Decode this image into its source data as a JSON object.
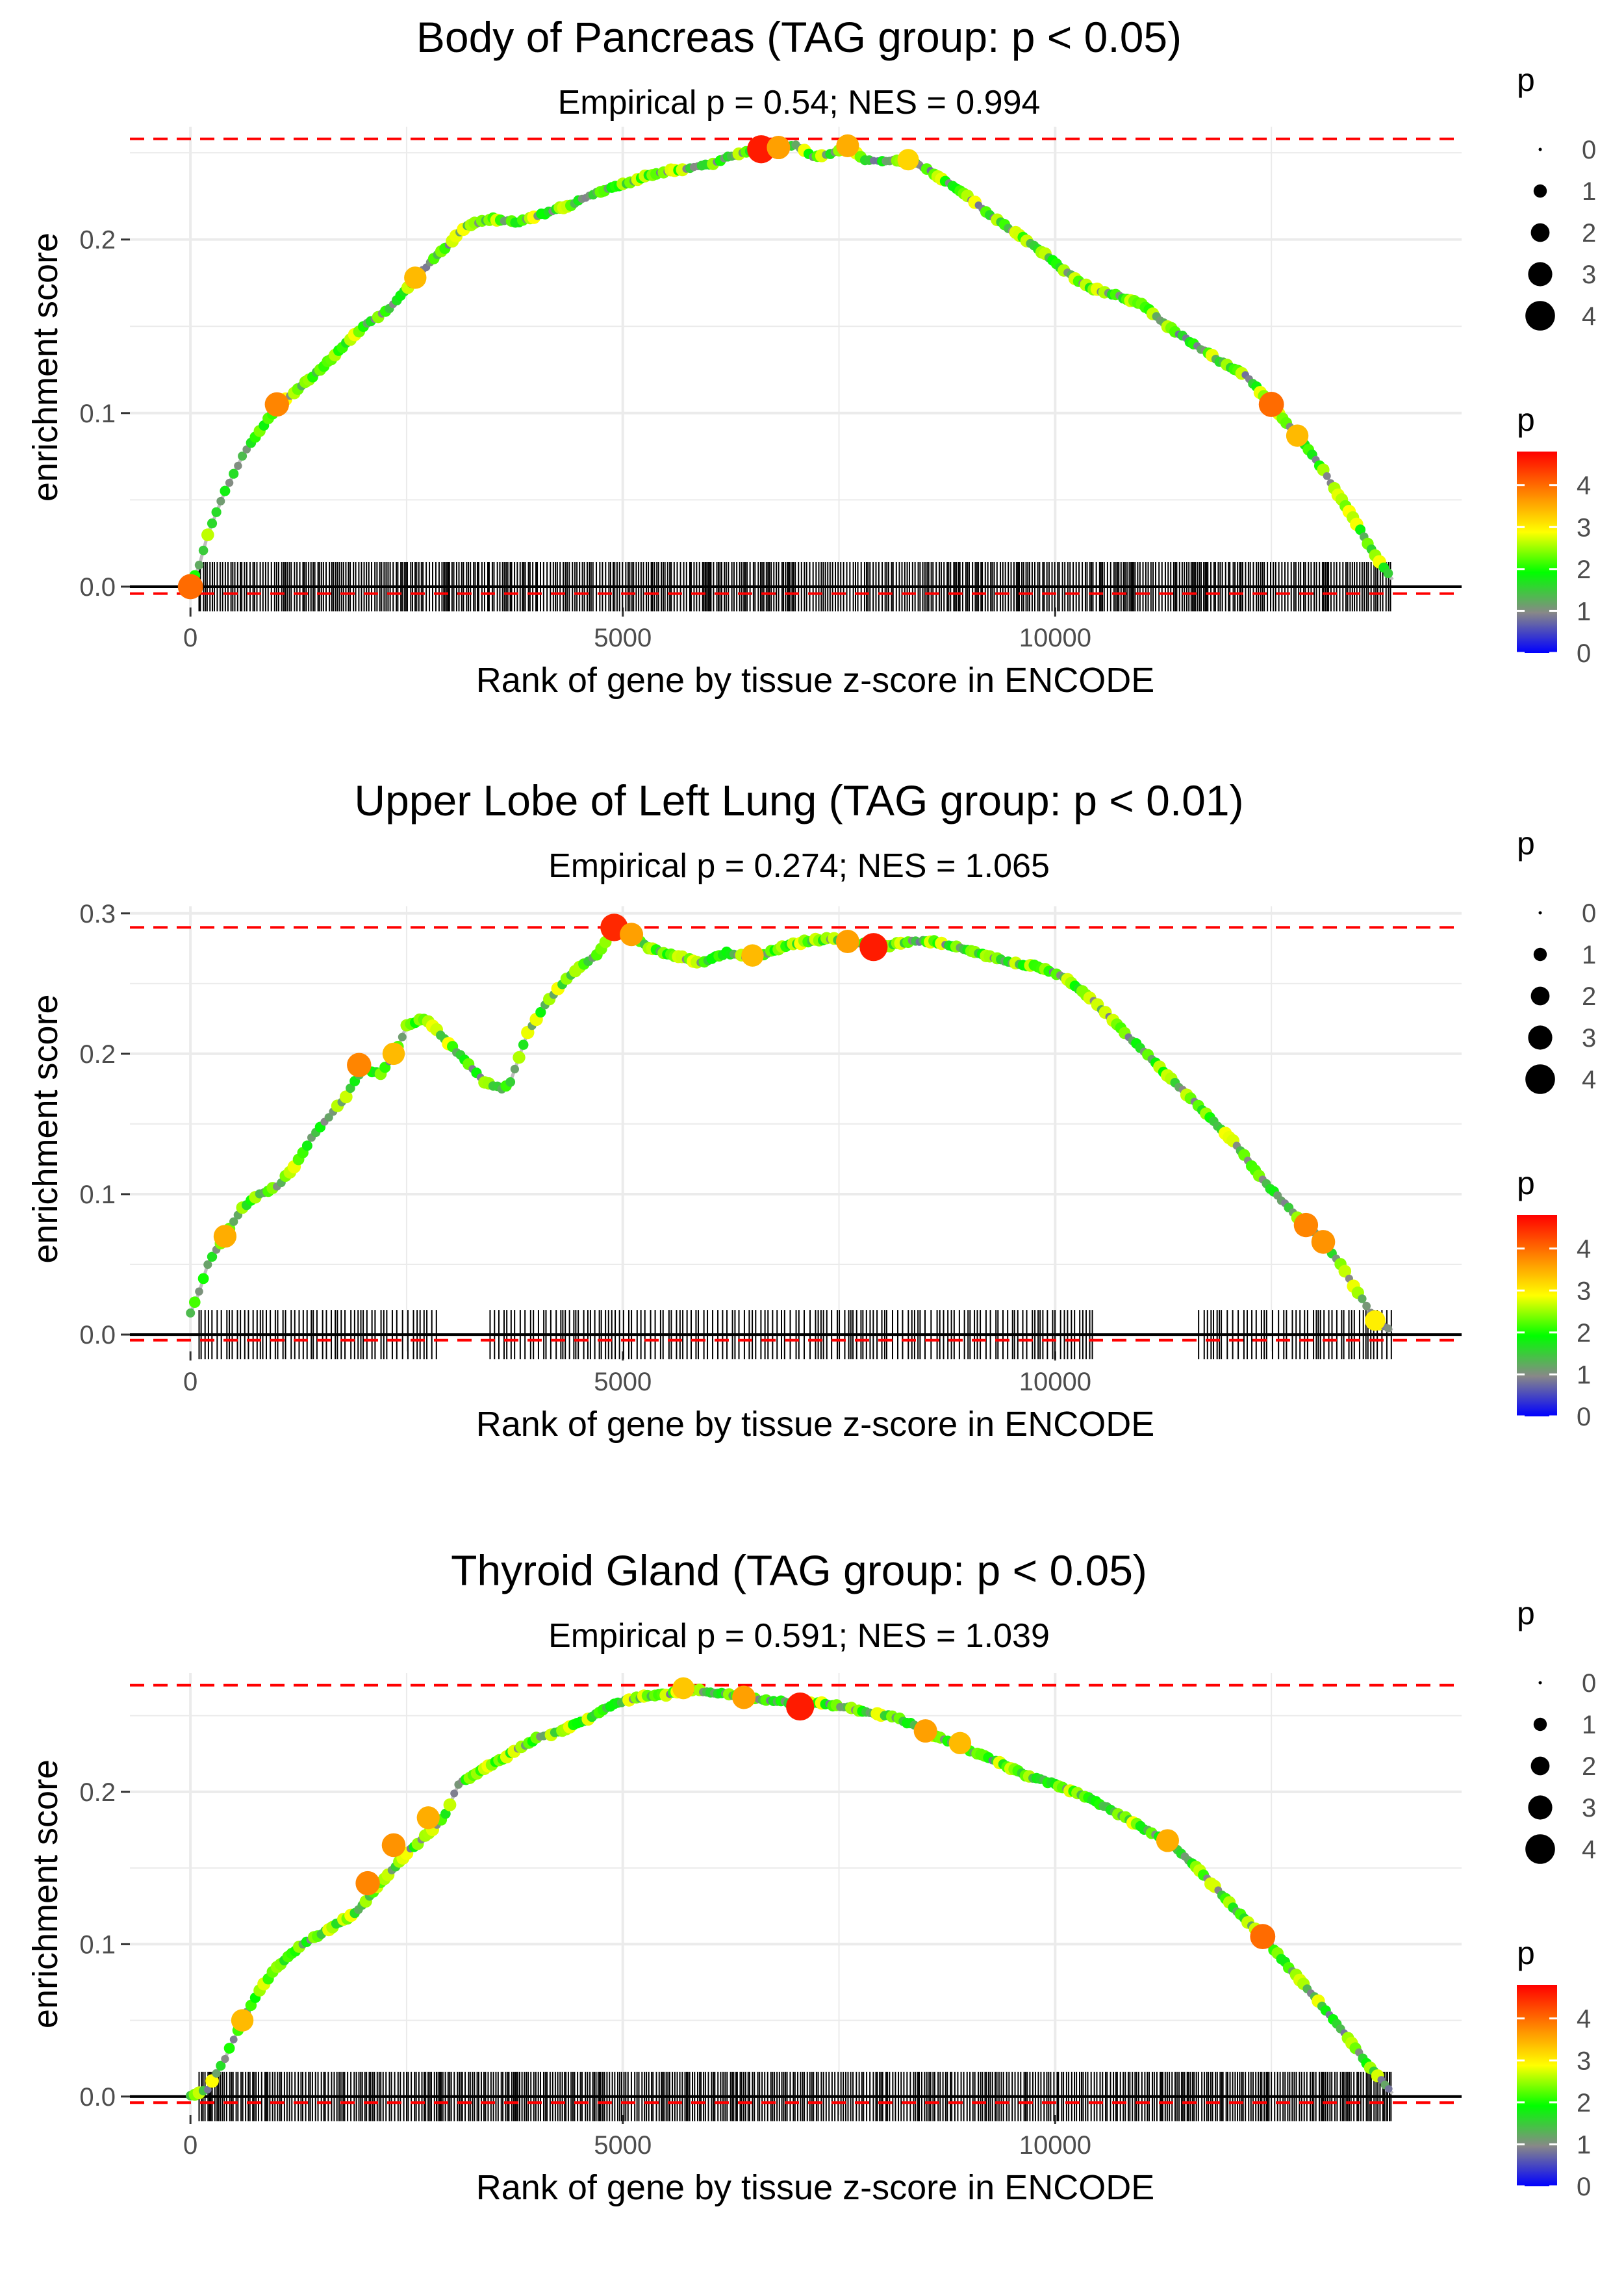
{
  "chart_data": [
    {
      "type": "line",
      "title": "Body of Pancreas (TAG group: p < 0.05)",
      "subtitle": "Empirical p = 0.54; NES = 0.994",
      "xlabel": "Rank of gene by tissue z-score in ENCODE",
      "ylabel": "enrichment score",
      "xlim": [
        -700,
        14700
      ],
      "ylim": [
        -0.012,
        0.265
      ],
      "x_ticks": [
        0,
        5000,
        10000
      ],
      "x_tick_labels": [
        "0",
        "5000",
        "10000"
      ],
      "y_ticks": [
        0.0,
        0.1,
        0.2
      ],
      "y_tick_labels": [
        "0.0",
        "0.1",
        "0.2"
      ],
      "max_es": 0.258,
      "min_es": -0.004,
      "series": [
        {
          "name": "running enrichment score",
          "x": [
            0,
            100,
            200,
            400,
            600,
            800,
            1000,
            1200,
            1500,
            1800,
            2000,
            2300,
            2600,
            2900,
            3200,
            3500,
            3800,
            4100,
            4400,
            4700,
            5000,
            5300,
            5600,
            6000,
            6300,
            6600,
            6800,
            7000,
            7200,
            7400,
            7600,
            7800,
            8000,
            8300,
            8600,
            8900,
            9200,
            9500,
            9800,
            10100,
            10400,
            10700,
            11000,
            11300,
            11600,
            11900,
            12200,
            12500,
            12800,
            13100,
            13400,
            13700,
            13900
          ],
          "y": [
            0.0,
            0.012,
            0.03,
            0.055,
            0.075,
            0.09,
            0.103,
            0.112,
            0.125,
            0.14,
            0.15,
            0.16,
            0.178,
            0.193,
            0.208,
            0.212,
            0.21,
            0.215,
            0.22,
            0.227,
            0.232,
            0.237,
            0.24,
            0.243,
            0.249,
            0.252,
            0.253,
            0.254,
            0.248,
            0.249,
            0.254,
            0.246,
            0.245,
            0.246,
            0.238,
            0.228,
            0.216,
            0.205,
            0.195,
            0.182,
            0.172,
            0.168,
            0.163,
            0.15,
            0.14,
            0.13,
            0.122,
            0.105,
            0.087,
            0.067,
            0.043,
            0.018,
            0.004
          ]
        }
      ],
      "gene_hits_x_range": [
        100,
        13900
      ],
      "gene_hit_gaps": [],
      "highlight_points": [
        {
          "x": 0,
          "y": 0.0,
          "p": 4.0
        },
        {
          "x": 1000,
          "y": 0.105,
          "p": 3.8
        },
        {
          "x": 2600,
          "y": 0.178,
          "p": 3.4
        },
        {
          "x": 6600,
          "y": 0.252,
          "p": 4.6
        },
        {
          "x": 6800,
          "y": 0.253,
          "p": 3.6
        },
        {
          "x": 7600,
          "y": 0.254,
          "p": 3.5
        },
        {
          "x": 8300,
          "y": 0.246,
          "p": 3.2
        },
        {
          "x": 12500,
          "y": 0.105,
          "p": 4.0
        },
        {
          "x": 12800,
          "y": 0.087,
          "p": 3.4
        }
      ],
      "size_legend": {
        "title": "p",
        "labels": [
          "0",
          "1",
          "2",
          "3",
          "4"
        ]
      },
      "color_legend": {
        "title": "p",
        "labels": [
          "4",
          "3",
          "2",
          "1",
          "0"
        ],
        "range": [
          0,
          4.8
        ]
      }
    },
    {
      "type": "line",
      "title": "Upper Lobe of Left Lung (TAG group: p < 0.01)",
      "subtitle": "Empirical p = 0.274; NES = 1.065",
      "xlabel": "Rank of gene by tissue z-score in ENCODE",
      "ylabel": "enrichment score",
      "xlim": [
        -700,
        14700
      ],
      "ylim": [
        -0.012,
        0.305
      ],
      "x_ticks": [
        0,
        5000,
        10000
      ],
      "x_tick_labels": [
        "0",
        "5000",
        "10000"
      ],
      "y_ticks": [
        0.0,
        0.1,
        0.2,
        0.3
      ],
      "y_tick_labels": [
        "0.0",
        "0.1",
        "0.2",
        "0.3"
      ],
      "max_es": 0.29,
      "min_es": -0.004,
      "series": [
        {
          "name": "running enrichment score",
          "x": [
            0,
            100,
            200,
            400,
            600,
            800,
            1000,
            1200,
            1400,
            1600,
            1800,
            2000,
            2200,
            2400,
            2500,
            2700,
            2800,
            3400,
            3600,
            3700,
            3900,
            4100,
            4300,
            4500,
            4700,
            4900,
            5100,
            5300,
            5600,
            5900,
            6200,
            6500,
            6800,
            7100,
            7400,
            7700,
            8000,
            8300,
            8600,
            8900,
            9200,
            9500,
            9800,
            10100,
            10400,
            11700,
            12100,
            12400,
            12700,
            12900,
            13100,
            13300,
            13500,
            13700,
            13900
          ],
          "y": [
            0.015,
            0.03,
            0.05,
            0.07,
            0.09,
            0.1,
            0.105,
            0.12,
            0.14,
            0.155,
            0.17,
            0.19,
            0.185,
            0.205,
            0.22,
            0.225,
            0.22,
            0.18,
            0.175,
            0.18,
            0.215,
            0.235,
            0.25,
            0.262,
            0.27,
            0.29,
            0.285,
            0.275,
            0.27,
            0.265,
            0.272,
            0.268,
            0.275,
            0.28,
            0.282,
            0.279,
            0.276,
            0.28,
            0.28,
            0.275,
            0.27,
            0.265,
            0.262,
            0.255,
            0.24,
            0.16,
            0.135,
            0.11,
            0.09,
            0.078,
            0.066,
            0.05,
            0.03,
            0.01,
            0.003
          ]
        }
      ],
      "gene_hits_x_range": [
        100,
        13900
      ],
      "gene_hit_gaps": [
        [
          2850,
          3450
        ],
        [
          10450,
          11600
        ]
      ],
      "highlight_points": [
        {
          "x": 400,
          "y": 0.07,
          "p": 3.5
        },
        {
          "x": 1950,
          "y": 0.192,
          "p": 3.8
        },
        {
          "x": 2350,
          "y": 0.2,
          "p": 3.4
        },
        {
          "x": 4900,
          "y": 0.29,
          "p": 4.5
        },
        {
          "x": 5100,
          "y": 0.285,
          "p": 3.6
        },
        {
          "x": 6500,
          "y": 0.27,
          "p": 3.4
        },
        {
          "x": 7600,
          "y": 0.28,
          "p": 3.6
        },
        {
          "x": 7900,
          "y": 0.276,
          "p": 4.6
        },
        {
          "x": 12900,
          "y": 0.078,
          "p": 3.8
        },
        {
          "x": 13100,
          "y": 0.066,
          "p": 3.7
        },
        {
          "x": 13700,
          "y": 0.01,
          "p": 3.0
        }
      ],
      "size_legend": {
        "title": "p",
        "labels": [
          "0",
          "1",
          "2",
          "3",
          "4"
        ]
      },
      "color_legend": {
        "title": "p",
        "labels": [
          "4",
          "3",
          "2",
          "1",
          "0"
        ],
        "range": [
          0,
          4.8
        ]
      }
    },
    {
      "type": "line",
      "title": "Thyroid Gland (TAG group: p < 0.05)",
      "subtitle": "Empirical p = 0.591; NES = 1.039",
      "xlabel": "Rank of gene by tissue z-score in ENCODE",
      "ylabel": "enrichment score",
      "xlim": [
        -700,
        14700
      ],
      "ylim": [
        -0.012,
        0.278
      ],
      "x_ticks": [
        0,
        5000,
        10000
      ],
      "x_tick_labels": [
        "0",
        "5000",
        "10000"
      ],
      "y_ticks": [
        0.0,
        0.1,
        0.2
      ],
      "y_tick_labels": [
        "0.0",
        "0.1",
        "0.2"
      ],
      "max_es": 0.27,
      "min_es": -0.004,
      "series": [
        {
          "name": "running enrichment score",
          "x": [
            0,
            200,
            400,
            600,
            800,
            1000,
            1300,
            1600,
            1900,
            2200,
            2500,
            2800,
            2950,
            3100,
            3400,
            3700,
            4000,
            4300,
            4600,
            4900,
            5200,
            5500,
            5800,
            6100,
            6400,
            6700,
            7000,
            7300,
            7600,
            7900,
            8200,
            8500,
            8800,
            9100,
            9400,
            9700,
            10000,
            10300,
            10600,
            10900,
            11200,
            11500,
            11800,
            12100,
            12400,
            12700,
            13000,
            13300,
            13600,
            13900
          ],
          "y": [
            0.0,
            0.005,
            0.025,
            0.05,
            0.07,
            0.085,
            0.1,
            0.11,
            0.12,
            0.14,
            0.16,
            0.175,
            0.185,
            0.205,
            0.215,
            0.225,
            0.235,
            0.24,
            0.248,
            0.258,
            0.262,
            0.264,
            0.267,
            0.265,
            0.262,
            0.26,
            0.258,
            0.258,
            0.255,
            0.252,
            0.248,
            0.24,
            0.232,
            0.225,
            0.218,
            0.21,
            0.205,
            0.198,
            0.19,
            0.18,
            0.17,
            0.158,
            0.14,
            0.122,
            0.105,
            0.085,
            0.065,
            0.045,
            0.022,
            0.002
          ]
        }
      ],
      "gene_hits_x_range": [
        100,
        13900
      ],
      "gene_hit_gaps": [],
      "highlight_points": [
        {
          "x": 600,
          "y": 0.05,
          "p": 3.4
        },
        {
          "x": 2050,
          "y": 0.14,
          "p": 3.8
        },
        {
          "x": 2350,
          "y": 0.165,
          "p": 3.7
        },
        {
          "x": 2750,
          "y": 0.183,
          "p": 3.5
        },
        {
          "x": 5700,
          "y": 0.268,
          "p": 3.3
        },
        {
          "x": 6400,
          "y": 0.262,
          "p": 3.6
        },
        {
          "x": 7050,
          "y": 0.256,
          "p": 4.6
        },
        {
          "x": 8500,
          "y": 0.24,
          "p": 3.6
        },
        {
          "x": 8900,
          "y": 0.232,
          "p": 3.4
        },
        {
          "x": 11300,
          "y": 0.168,
          "p": 3.5
        },
        {
          "x": 12400,
          "y": 0.105,
          "p": 4.0
        }
      ],
      "size_legend": {
        "title": "p",
        "labels": [
          "0",
          "1",
          "2",
          "3",
          "4"
        ]
      },
      "color_legend": {
        "title": "p",
        "labels": [
          "4",
          "3",
          "2",
          "1",
          "0"
        ],
        "range": [
          0,
          4.8
        ]
      }
    }
  ],
  "colors": {
    "background": "#ffffff",
    "grid": "#ebebeb",
    "line": "#bdbdbd",
    "threshold": "#ff0000",
    "zero_line": "#000000",
    "gene_tick": "#000000",
    "text": "#000000",
    "tick_text": "#4d4d4d",
    "gradient_stops": [
      "#0000ff",
      "#888888",
      "#00ff00",
      "#ffff00",
      "#ff8000",
      "#ff0000"
    ]
  }
}
